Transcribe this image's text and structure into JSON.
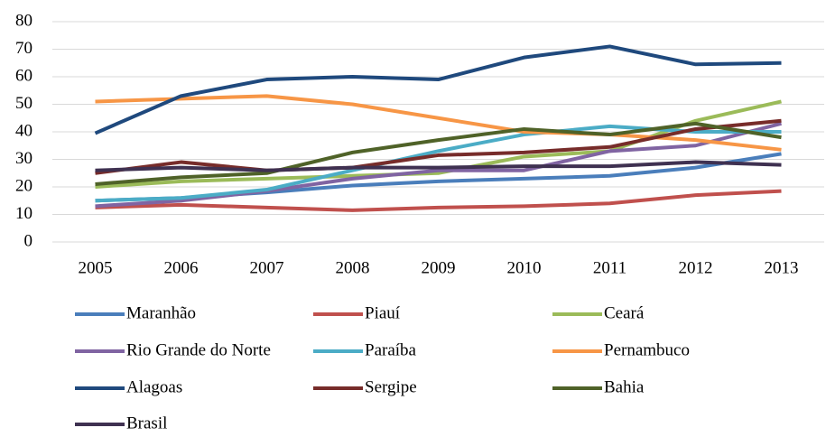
{
  "chart_data": {
    "type": "line",
    "x": [
      "2005",
      "2006",
      "2007",
      "2008",
      "2009",
      "2010",
      "2011",
      "2012",
      "2013"
    ],
    "ylim": [
      0,
      80
    ],
    "yticks": [
      0,
      10,
      20,
      30,
      40,
      50,
      60,
      70,
      80
    ],
    "grid": true,
    "legend": "bottom",
    "series": [
      {
        "name": "Maranhão",
        "color": "#4a7ebb",
        "values": [
          15,
          16,
          18,
          20.5,
          22,
          23,
          24,
          27,
          32
        ]
      },
      {
        "name": "Piauí",
        "color": "#c0504d",
        "values": [
          12.5,
          13.5,
          12.5,
          11.5,
          12.5,
          13,
          14,
          17,
          18.5
        ]
      },
      {
        "name": "Ceará",
        "color": "#9bbb59",
        "values": [
          20,
          22,
          23,
          24,
          25,
          31,
          33,
          44,
          51
        ]
      },
      {
        "name": "Rio Grande do Norte",
        "color": "#8064a2",
        "values": [
          13,
          15,
          18.5,
          23,
          26,
          26,
          33,
          35,
          43
        ]
      },
      {
        "name": "Paraíba",
        "color": "#4bacc6",
        "values": [
          15,
          16,
          19,
          26,
          33,
          39,
          42,
          40,
          40
        ]
      },
      {
        "name": "Pernambuco",
        "color": "#f79646",
        "values": [
          51,
          52,
          53,
          50,
          45,
          40,
          39,
          37,
          33.5
        ]
      },
      {
        "name": "Alagoas",
        "color": "#1f497d",
        "values": [
          39.5,
          53,
          59,
          60,
          59,
          67,
          71,
          64.5,
          65
        ]
      },
      {
        "name": "Sergipe",
        "color": "#772c2a",
        "values": [
          25,
          29,
          26,
          27,
          31.5,
          32.5,
          34.5,
          41,
          44
        ]
      },
      {
        "name": "Bahia",
        "color": "#4f6228",
        "values": [
          21,
          23.5,
          25,
          32.5,
          37,
          41,
          39,
          43,
          38
        ]
      },
      {
        "name": "Brasil",
        "color": "#3f3151",
        "values": [
          26,
          27,
          26,
          27,
          27,
          27.5,
          27.5,
          29,
          28
        ]
      }
    ]
  }
}
